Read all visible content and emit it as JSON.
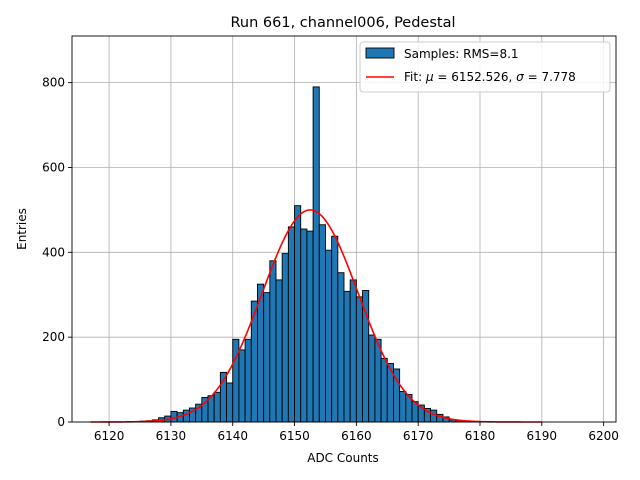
{
  "chart_data": {
    "type": "bar",
    "title": "Run 661, channel006, Pedestal",
    "xlabel": "ADC Counts",
    "ylabel": "Entries",
    "xlim": [
      6114,
      6202
    ],
    "ylim": [
      0,
      910
    ],
    "xticks": [
      6120,
      6130,
      6140,
      6150,
      6160,
      6170,
      6180,
      6190,
      6200
    ],
    "yticks": [
      0,
      200,
      400,
      600,
      800
    ],
    "grid": true,
    "legend_position": "top-right",
    "colors": {
      "bars": "#1f77b4",
      "bar_edge": "#000000",
      "fit": "#ff0000",
      "grid": "#b0b0b0"
    },
    "histogram": {
      "name": "Samples: RMS=8.1",
      "bin_width": 1,
      "bin_start": 6125,
      "counts": [
        2,
        3,
        5,
        10,
        14,
        25,
        22,
        28,
        33,
        42,
        58,
        62,
        70,
        117,
        92,
        195,
        170,
        195,
        285,
        325,
        305,
        380,
        335,
        397,
        460,
        510,
        455,
        450,
        790,
        465,
        405,
        438,
        352,
        308,
        335,
        295,
        310,
        205,
        195,
        150,
        138,
        125,
        72,
        65,
        48,
        40,
        32,
        28,
        18,
        12,
        5,
        3,
        2,
        1,
        1
      ]
    },
    "fit": {
      "name": "Fit: μ = 6152.526, σ = 7.778",
      "label_prefix": "Fit: ",
      "mu_symbol": "μ",
      "mu_text": " = 6152.526, ",
      "sigma_symbol": "σ",
      "sigma_text": " = 7.778",
      "mu": 6152.526,
      "sigma": 7.778,
      "amplitude": 500,
      "x_range": [
        6117,
        6190
      ]
    }
  }
}
